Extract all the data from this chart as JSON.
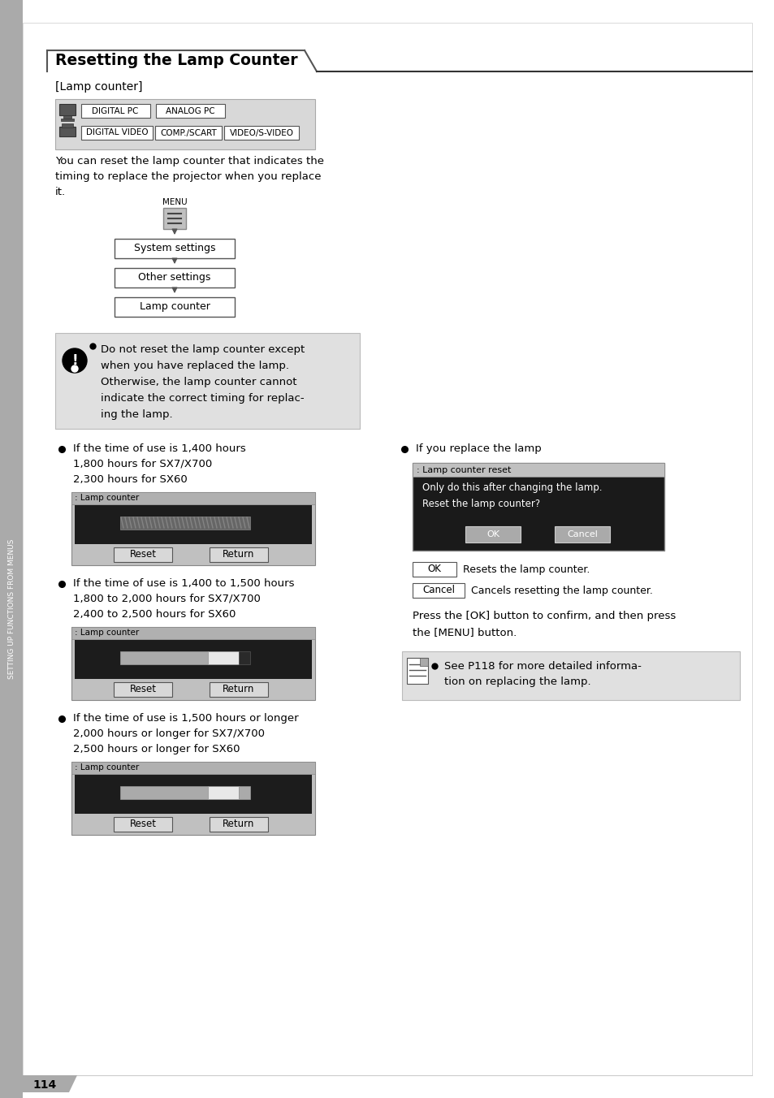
{
  "title": "Resetting the Lamp Counter",
  "subtitle": "[Lamp counter]",
  "bg_color": "#ffffff",
  "page_number": "114",
  "sidebar_text": "SETTING UP FUNCTIONS FROM MENUS",
  "main_text_1": "You can reset the lamp counter that indicates the\ntiming to replace the projector when you replace\nit.",
  "flow_labels": [
    "System settings",
    "Other settings",
    "Lamp counter"
  ],
  "menu_label": "MENU",
  "warning_text": "Do not reset the lamp counter except\nwhen you have replaced the lamp.\nOtherwise, the lamp counter cannot\nindicate the correct timing for replac-\ning the lamp.",
  "bullet1_line1": "If the time of use is 1,400 hours",
  "bullet1_line2": "1,800 hours for SX7/X700",
  "bullet1_line3": "2,300 hours for SX60",
  "bullet2_line1": "If the time of use is 1,400 to 1,500 hours",
  "bullet2_line2": "1,800 to 2,000 hours for SX7/X700",
  "bullet2_line3": "2,400 to 2,500 hours for SX60",
  "bullet3_line1": "If the time of use is 1,500 hours or longer",
  "bullet3_line2": "2,000 hours or longer for SX7/X700",
  "bullet3_line3": "2,500 hours or longer for SX60",
  "right_bullet_text": "If you replace the lamp",
  "lamp_reset_title": ": Lamp counter reset",
  "lamp_reset_msg": "Only do this after changing the lamp.\nReset the lamp counter?",
  "ok_desc": "Resets the lamp counter.",
  "cancel_desc": "Cancels resetting the lamp counter.",
  "press_text": "Press the [OK] button to confirm, and then press\nthe [MENU] button.",
  "note_text": "See P118 for more detailed informa-\ntion on replacing the lamp.",
  "lamp_counter_title": ": Lamp counter",
  "input_labels_row1": [
    "DIGITAL PC",
    "ANALOG PC"
  ],
  "input_labels_row2": [
    "DIGITAL VIDEO",
    "COMP./SCART",
    "VIDEO/S-VIDEO"
  ]
}
